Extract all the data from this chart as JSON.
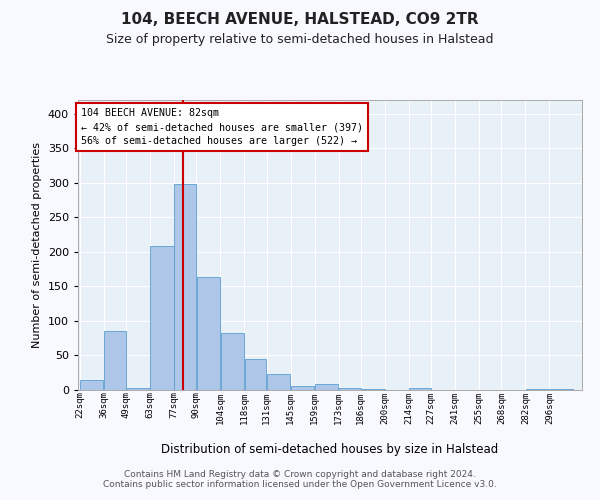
{
  "title": "104, BEECH AVENUE, HALSTEAD, CO9 2TR",
  "subtitle": "Size of property relative to semi-detached houses in Halstead",
  "xlabel": "Distribution of semi-detached houses by size in Halstead",
  "ylabel": "Number of semi-detached properties",
  "bin_labels": [
    "22sqm",
    "36sqm",
    "49sqm",
    "63sqm",
    "77sqm",
    "90sqm",
    "104sqm",
    "118sqm",
    "131sqm",
    "145sqm",
    "159sqm",
    "173sqm",
    "186sqm",
    "200sqm",
    "214sqm",
    "227sqm",
    "241sqm",
    "255sqm",
    "268sqm",
    "282sqm",
    "296sqm"
  ],
  "bin_edges": [
    22,
    36,
    49,
    63,
    77,
    90,
    104,
    118,
    131,
    145,
    159,
    173,
    186,
    200,
    214,
    227,
    241,
    255,
    268,
    282,
    296,
    310
  ],
  "bar_heights": [
    14,
    86,
    3,
    209,
    298,
    163,
    83,
    45,
    23,
    6,
    9,
    3,
    1,
    0,
    3,
    0,
    0,
    0,
    0,
    2,
    1
  ],
  "bar_color": "#aec6e8",
  "bar_edge_color": "#5a9fd4",
  "property_size": 82,
  "annotation_line_color": "#cc0000",
  "annotation_box_color": "#ffffff",
  "annotation_box_edge": "#cc0000",
  "annotation_title": "104 BEECH AVENUE: 82sqm",
  "annotation_line1": "← 42% of semi-detached houses are smaller (397)",
  "annotation_line2": "56% of semi-detached houses are larger (522) →",
  "ylim": [
    0,
    420
  ],
  "yticks": [
    0,
    50,
    100,
    150,
    200,
    250,
    300,
    350,
    400
  ],
  "background_color": "#e8f0f8",
  "grid_color": "#ffffff",
  "fig_facecolor": "#f8f8ff",
  "footer_line1": "Contains HM Land Registry data © Crown copyright and database right 2024.",
  "footer_line2": "Contains public sector information licensed under the Open Government Licence v3.0."
}
